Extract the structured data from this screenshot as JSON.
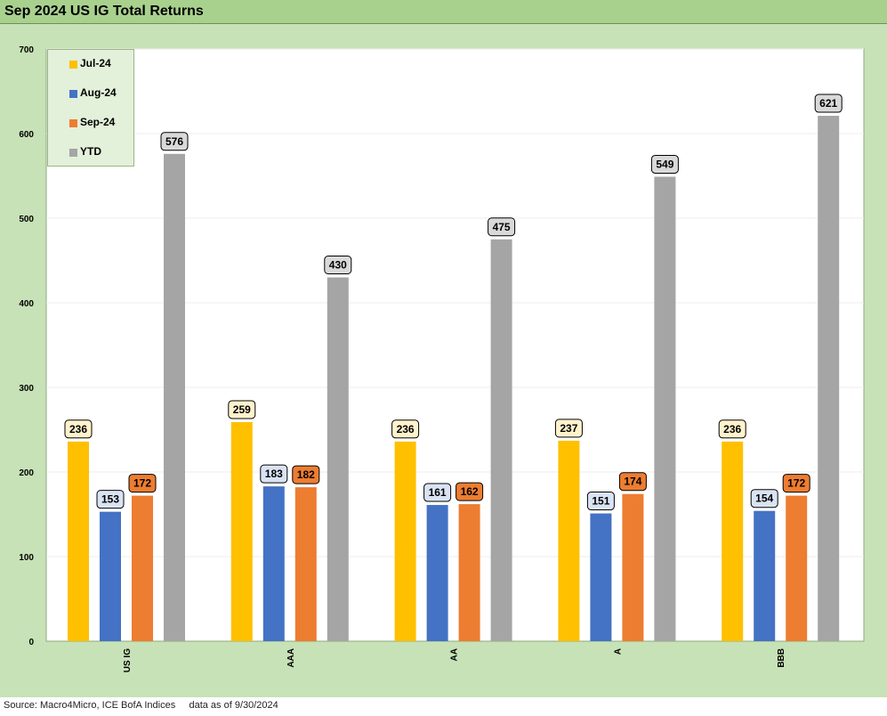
{
  "title": "Sep 2024 US IG Total Returns",
  "footer": {
    "source": "Source: Macro4Micro, ICE BofA Indices     data as of 9/30/2024"
  },
  "colors": {
    "Jul-24": "#ffc000",
    "Aug-24": "#4472c4",
    "Sep-24": "#ed7d31",
    "YTD": "#a5a5a5"
  },
  "chart_data": {
    "type": "bar",
    "title": "Sep 2024 US IG Total Returns",
    "xlabel": "",
    "ylabel": "",
    "ylim": [
      0,
      700
    ],
    "yticks": [
      0,
      100,
      200,
      300,
      400,
      500,
      600,
      700
    ],
    "grid": true,
    "legend_position": "top-left",
    "categories": [
      "US IG",
      "AAA",
      "AA",
      "A",
      "BBB"
    ],
    "series": [
      {
        "name": "Jul-24",
        "values": [
          236,
          259,
          236,
          237,
          236
        ],
        "color": "#ffc000",
        "label_fill": "#fff2cc"
      },
      {
        "name": "Aug-24",
        "values": [
          153,
          183,
          161,
          151,
          154
        ],
        "color": "#4472c4",
        "label_fill": "#dae3f3"
      },
      {
        "name": "Sep-24",
        "values": [
          172,
          182,
          162,
          174,
          172
        ],
        "color": "#ed7d31",
        "label_fill": "#ed7d31"
      },
      {
        "name": "YTD",
        "values": [
          576,
          430,
          475,
          549,
          621
        ],
        "color": "#a5a5a5",
        "label_fill": "#d9d9d9"
      }
    ]
  }
}
